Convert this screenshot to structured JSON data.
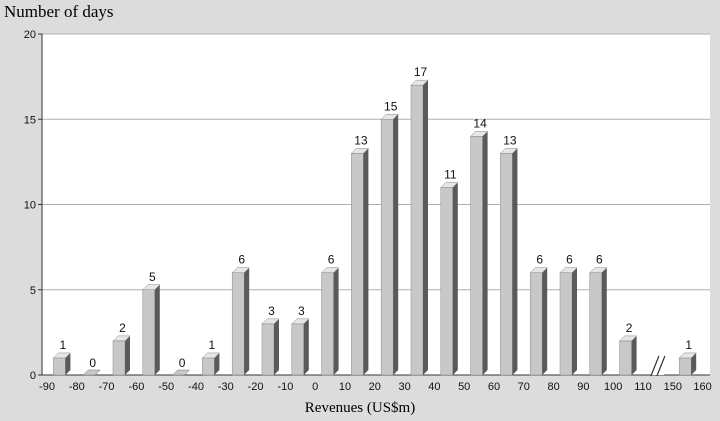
{
  "chart_data": {
    "type": "bar",
    "ylabel": "Number of days",
    "xlabel": "Revenues (US$m)",
    "ylim": [
      0,
      20
    ],
    "yticks": [
      0,
      5,
      10,
      15,
      20
    ],
    "grid": true,
    "x_tick_labels": [
      "-90",
      "-80",
      "-70",
      "-60",
      "-50",
      "-40",
      "-30",
      "-20",
      "-10",
      "0",
      "10",
      "20",
      "30",
      "40",
      "50",
      "60",
      "70",
      "80",
      "90",
      "100",
      "110",
      "150",
      "160"
    ],
    "axis_break_between": [
      "110",
      "150"
    ],
    "bins": [
      {
        "from": "-90",
        "to": "-80",
        "value": 1
      },
      {
        "from": "-80",
        "to": "-70",
        "value": 0
      },
      {
        "from": "-70",
        "to": "-60",
        "value": 2
      },
      {
        "from": "-60",
        "to": "-50",
        "value": 5
      },
      {
        "from": "-50",
        "to": "-40",
        "value": 0
      },
      {
        "from": "-40",
        "to": "-30",
        "value": 1
      },
      {
        "from": "-30",
        "to": "-20",
        "value": 6
      },
      {
        "from": "-20",
        "to": "-10",
        "value": 3
      },
      {
        "from": "-10",
        "to": "0",
        "value": 3
      },
      {
        "from": "0",
        "to": "10",
        "value": 6
      },
      {
        "from": "10",
        "to": "20",
        "value": 13
      },
      {
        "from": "20",
        "to": "30",
        "value": 15
      },
      {
        "from": "30",
        "to": "40",
        "value": 17
      },
      {
        "from": "40",
        "to": "50",
        "value": 11
      },
      {
        "from": "50",
        "to": "60",
        "value": 14
      },
      {
        "from": "60",
        "to": "70",
        "value": 13
      },
      {
        "from": "70",
        "to": "80",
        "value": 6
      },
      {
        "from": "80",
        "to": "90",
        "value": 6
      },
      {
        "from": "90",
        "to": "100",
        "value": 6
      },
      {
        "from": "100",
        "to": "110",
        "value": 2
      },
      {
        "from": "150",
        "to": "160",
        "value": 1
      }
    ],
    "colors": {
      "bar_face": "#c8c8c8",
      "bar_side": "#5a5a5a",
      "plot_bg": "#ffffff",
      "grid": "#b0b0b0"
    }
  }
}
